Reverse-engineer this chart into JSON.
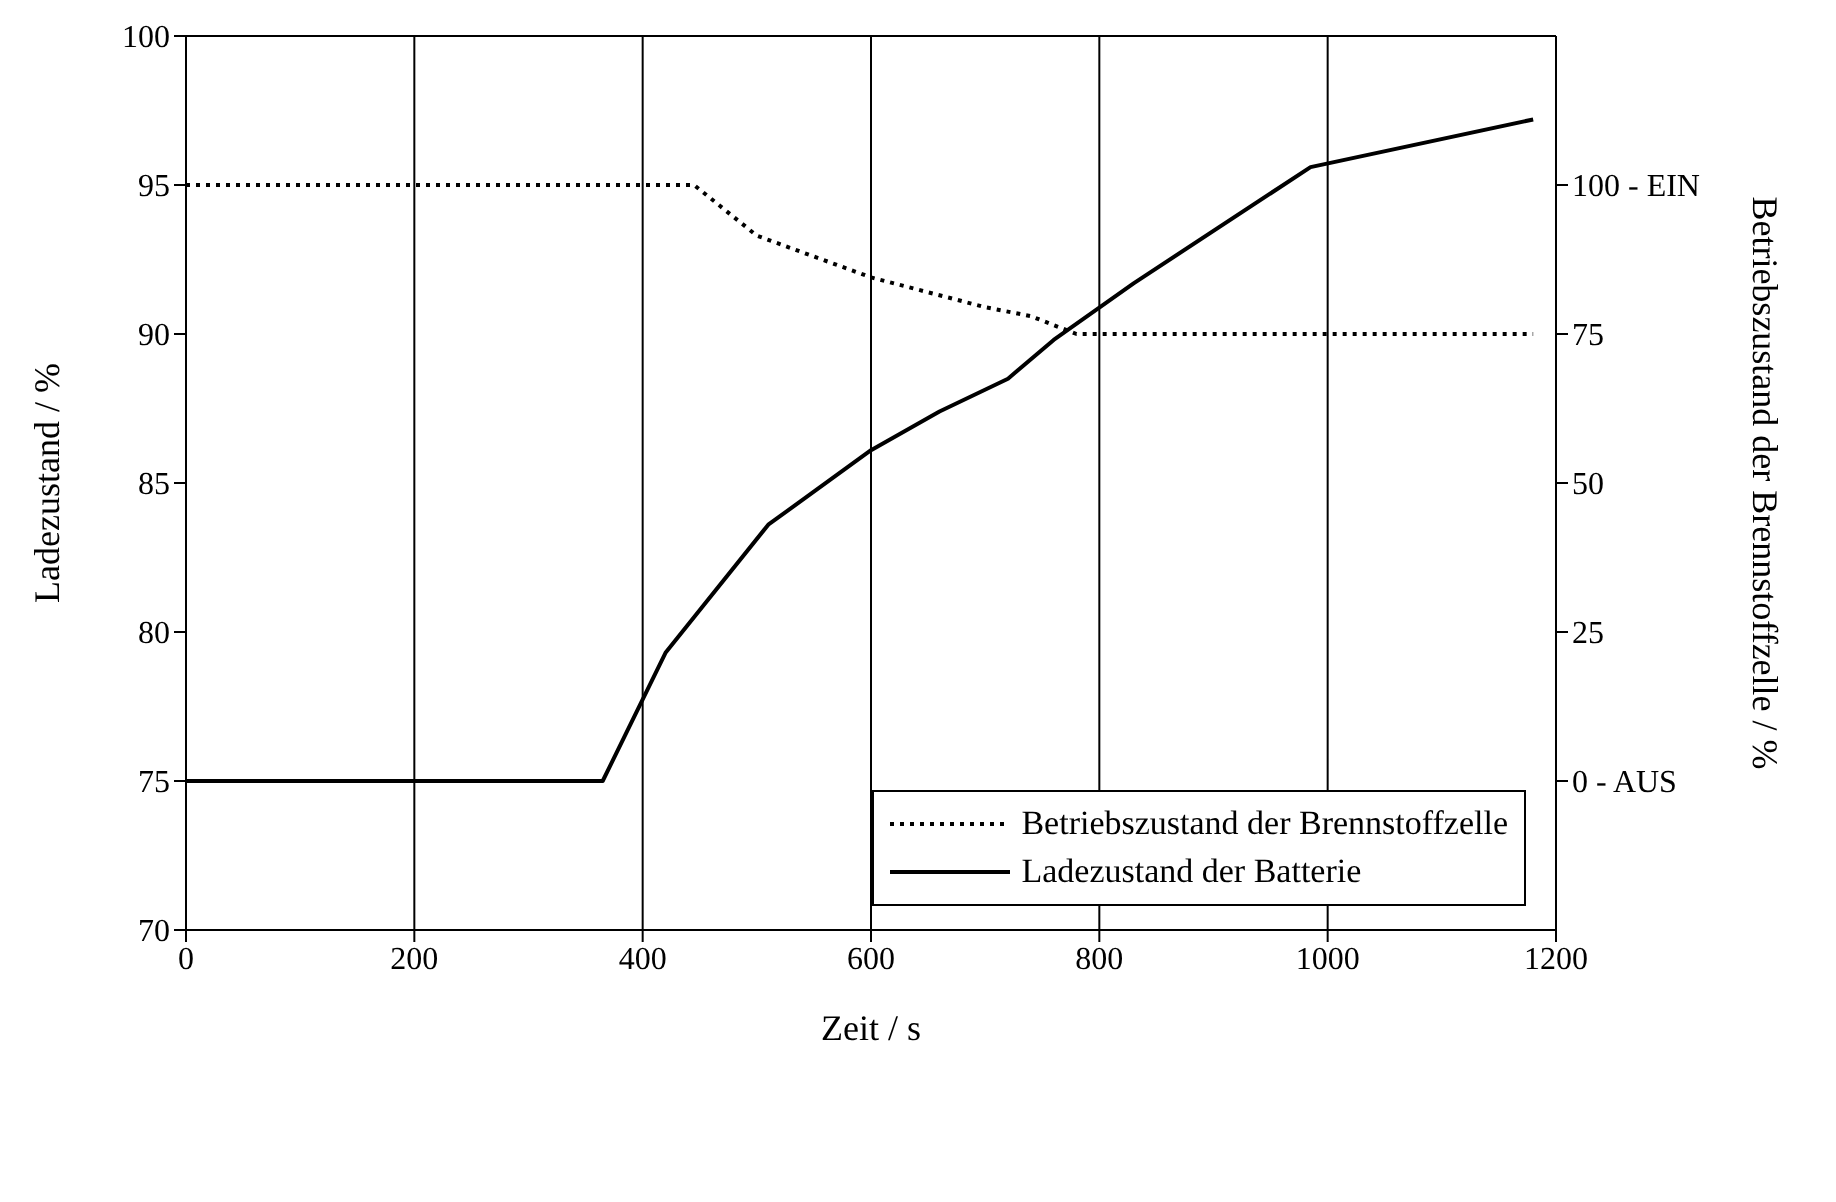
{
  "chart_data": {
    "type": "line",
    "xlabel": "Zeit / s",
    "ylabel": "Ladezustand / %",
    "y2label": "Betriebszustand der Brennstoffzelle / %",
    "xlim": [
      0,
      1200
    ],
    "xticks": [
      0,
      200,
      400,
      600,
      800,
      1000,
      1200
    ],
    "ylim": [
      70,
      100
    ],
    "yticks": [
      70,
      75,
      80,
      85,
      90,
      95,
      100
    ],
    "y2lim": [
      -25,
      125
    ],
    "y2ticks": [
      {
        "value": 0,
        "label": "0 - AUS"
      },
      25,
      50,
      75,
      {
        "value": 100,
        "label": "100 - EIN"
      }
    ],
    "grid": true,
    "legend": "bottom right",
    "marker": "none",
    "series": [
      {
        "name": "Betriebszustand der Brennstoffzelle",
        "color": "#000000",
        "axis": "y2",
        "line_style": "dotted",
        "x": [
          0,
          445,
          500,
          550,
          600,
          650,
          700,
          740,
          780,
          1180
        ],
        "values": [
          100,
          100,
          91.5,
          88,
          84.5,
          82,
          79.5,
          78,
          75,
          75
        ]
      },
      {
        "name": "Ladezustand der Batterie",
        "color": "#000000",
        "line_style": "solid",
        "x": [
          0,
          365,
          420,
          510,
          600,
          660,
          720,
          760,
          830,
          985,
          1180
        ],
        "values": [
          75,
          75,
          79.3,
          83.6,
          86.1,
          87.4,
          88.5,
          89.8,
          91.7,
          95.6,
          97.2
        ]
      }
    ]
  }
}
